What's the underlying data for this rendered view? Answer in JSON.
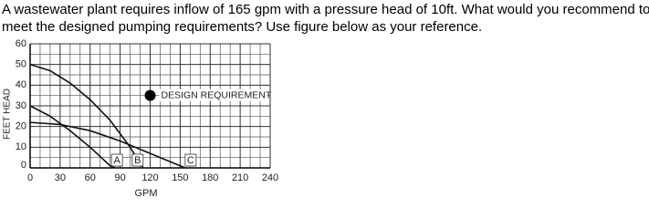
{
  "question_lines": [
    "A wastewater plant requires inflow of 165 gpm with a pressure head of 10ft. What would you recommend to",
    "meet the designed pumping requirements? Use figure below as your reference."
  ],
  "chart_data": {
    "type": "line",
    "xlabel": "GPM",
    "ylabel": "FEET HEAD",
    "xlim": [
      0,
      240
    ],
    "ylim": [
      0,
      60
    ],
    "xticks": [
      0,
      30,
      60,
      90,
      120,
      150,
      180,
      210,
      240
    ],
    "yticks": [
      0,
      10,
      20,
      30,
      40,
      50,
      60
    ],
    "x_minor_ticks": [
      10,
      20,
      40,
      50,
      70,
      80,
      100,
      110,
      130,
      140,
      160,
      170,
      190,
      200,
      220,
      230
    ],
    "y_minor_ticks": [
      5,
      15,
      25,
      35,
      45,
      55
    ],
    "grid": true,
    "series": [
      {
        "name": "A",
        "color": "#111111",
        "x": [
          0,
          20,
          40,
          60,
          80,
          85
        ],
        "values": [
          30,
          25,
          18,
          10,
          1,
          0
        ]
      },
      {
        "name": "B",
        "color": "#111111",
        "x": [
          0,
          20,
          40,
          60,
          80,
          100,
          110,
          113
        ],
        "values": [
          50,
          47,
          41,
          33,
          23,
          10,
          2,
          0
        ]
      },
      {
        "name": "C",
        "color": "#111111",
        "x": [
          0,
          30,
          60,
          90,
          120,
          150,
          155
        ],
        "values": [
          22,
          21,
          18,
          13,
          7,
          1,
          0
        ]
      }
    ],
    "annotations": [
      {
        "text": "DESIGN REQUIREMENT",
        "x": 120,
        "y": 35
      }
    ]
  }
}
